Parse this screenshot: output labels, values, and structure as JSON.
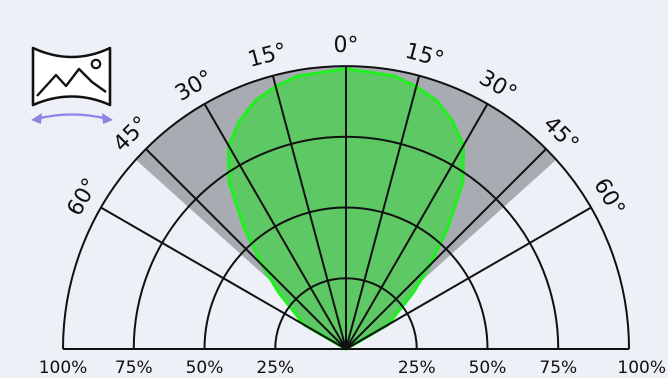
{
  "colors": {
    "background": "#eef0f8",
    "ink": "#111111",
    "grid": "#111111",
    "tilt_zone": "#a9abb2",
    "pattern_fill": "#5ec864",
    "pattern_stroke": "#22ee22",
    "icon_arrow": "#8a86e6"
  },
  "icon": {
    "name": "curved-panorama-screen-icon"
  },
  "diagram": {
    "radial_rings_percent": [
      25,
      50,
      75,
      100
    ],
    "radial_lines_degrees": [
      -90,
      -60,
      -45,
      -30,
      -15,
      0,
      15,
      30,
      45,
      60,
      90
    ],
    "tilt_zone_degrees": [
      -48,
      48
    ],
    "angle_labels": [
      {
        "text": "0°",
        "angle": 0
      },
      {
        "text": "15°",
        "angle": -15
      },
      {
        "text": "30°",
        "angle": -30
      },
      {
        "text": "45°",
        "angle": -45
      },
      {
        "text": "60°",
        "angle": -60
      },
      {
        "text": "15°",
        "angle": 15
      },
      {
        "text": "30°",
        "angle": 30
      },
      {
        "text": "45°",
        "angle": 45
      },
      {
        "text": "60°",
        "angle": 60
      }
    ],
    "left_percent_labels": [
      "100%",
      "75%",
      "50%",
      "25%"
    ],
    "right_percent_labels": [
      "25%",
      "50%",
      "75%",
      "100%"
    ],
    "coverage_pattern": [
      {
        "angle": -90,
        "r": 0
      },
      {
        "angle": -60,
        "r": 0.17
      },
      {
        "angle": -50,
        "r": 0.31
      },
      {
        "angle": -45,
        "r": 0.42
      },
      {
        "angle": -40,
        "r": 0.56
      },
      {
        "angle": -35,
        "r": 0.72
      },
      {
        "angle": -30,
        "r": 0.83
      },
      {
        "angle": -25,
        "r": 0.89
      },
      {
        "angle": -20,
        "r": 0.935
      },
      {
        "angle": -15,
        "r": 0.96
      },
      {
        "angle": -10,
        "r": 0.98
      },
      {
        "angle": 0,
        "r": 0.99
      },
      {
        "angle": 10,
        "r": 0.98
      },
      {
        "angle": 15,
        "r": 0.96
      },
      {
        "angle": 20,
        "r": 0.935
      },
      {
        "angle": 25,
        "r": 0.89
      },
      {
        "angle": 30,
        "r": 0.83
      },
      {
        "angle": 35,
        "r": 0.72
      },
      {
        "angle": 40,
        "r": 0.56
      },
      {
        "angle": 45,
        "r": 0.42
      },
      {
        "angle": 50,
        "r": 0.31
      },
      {
        "angle": 60,
        "r": 0.17
      },
      {
        "angle": 90,
        "r": 0
      }
    ]
  }
}
